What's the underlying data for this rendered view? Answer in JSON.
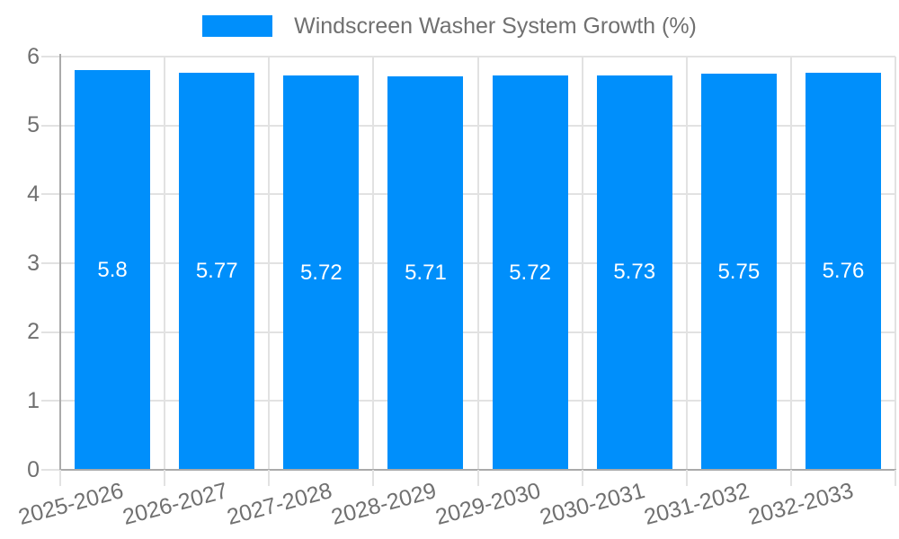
{
  "legend": {
    "label": "Windscreen Washer System Growth (%)"
  },
  "chart_data": {
    "type": "bar",
    "title": "Windscreen Washer System Growth (%)",
    "categories": [
      "2025-2026",
      "2026-2027",
      "2027-2028",
      "2028-2029",
      "2029-2030",
      "2030-2031",
      "2031-2032",
      "2032-2033"
    ],
    "values": [
      5.8,
      5.77,
      5.72,
      5.71,
      5.72,
      5.73,
      5.75,
      5.76
    ],
    "value_labels": [
      "5.8",
      "5.77",
      "5.72",
      "5.71",
      "5.72",
      "5.73",
      "5.75",
      "5.76"
    ],
    "xlabel": "",
    "ylabel": "",
    "ylim": [
      0,
      6
    ],
    "yticks": [
      0,
      1,
      2,
      3,
      4,
      5,
      6
    ],
    "grid": true,
    "legend_position": "top",
    "x_label_rotation": -15
  },
  "colors": {
    "bar": "#008FFB",
    "bar_label": "#ffffff",
    "grid": "#e2e2e2",
    "axis": "#aaaaaa",
    "tick_label": "#707070",
    "legend_text": "#707070"
  }
}
